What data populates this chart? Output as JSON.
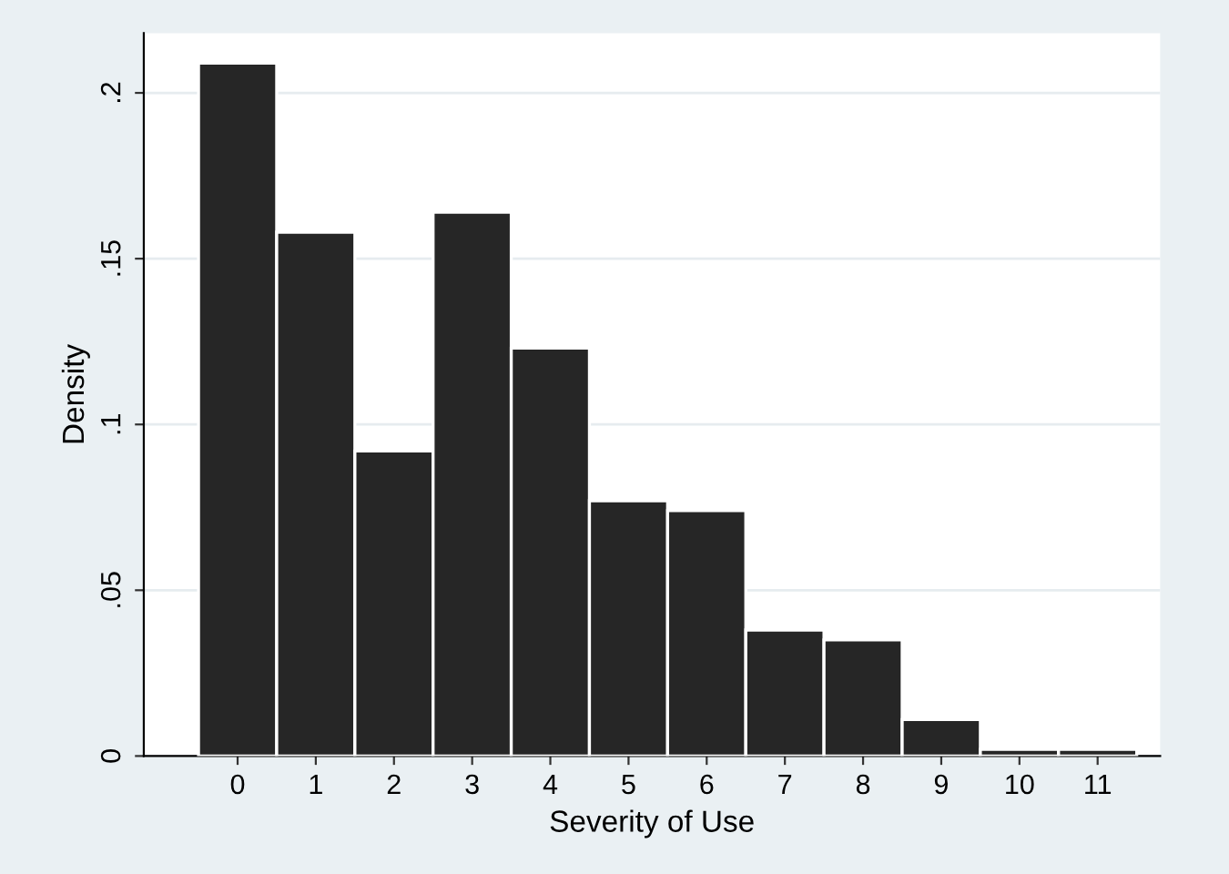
{
  "chart_data": {
    "type": "histogram",
    "xlabel": "Severity of Use",
    "ylabel": "Density",
    "bins": [
      -0.5,
      0.5,
      1.5,
      2.5,
      3.5,
      4.5,
      5.5,
      6.5,
      7.5,
      8.5,
      9.5,
      10.5,
      11.5
    ],
    "values": [
      0.209,
      0.158,
      0.092,
      0.164,
      0.123,
      0.077,
      0.074,
      0.038,
      0.035,
      0.011,
      0.002,
      0.002
    ],
    "color": "#262626",
    "xlim": [
      -1.2,
      11.8
    ],
    "xticks": [
      0,
      1,
      2,
      3,
      4,
      5,
      6,
      7,
      8,
      9,
      10,
      11
    ],
    "ylim": [
      0,
      0.218
    ],
    "yticks": [
      0,
      {
        "value": 0.05,
        "label": ".05"
      },
      {
        "value": 0.1,
        "label": ".1"
      },
      {
        "value": 0.15,
        "label": ".15"
      },
      {
        "value": 0.2,
        "label": ".2"
      }
    ],
    "grid": "y"
  }
}
